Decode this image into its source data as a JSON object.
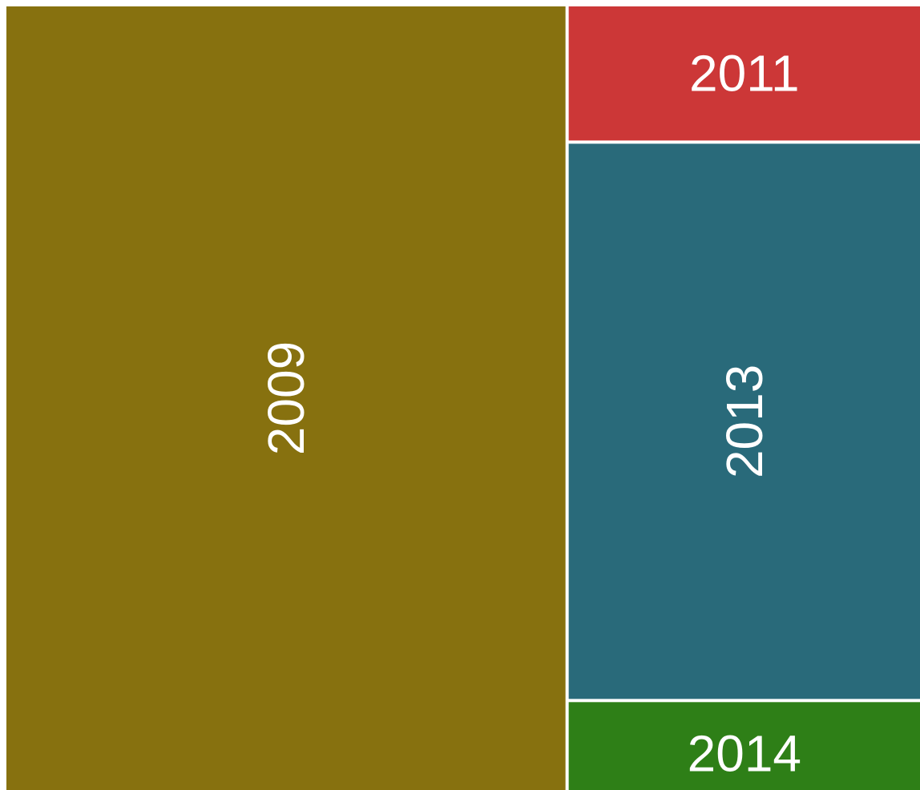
{
  "chart_data": {
    "type": "treemap",
    "categories": [
      "2009",
      "2011",
      "2013",
      "2014"
    ],
    "values": [
      680,
      75,
      305,
      48
    ],
    "colors": [
      "#87710f",
      "#cc3737",
      "#296a7a",
      "#2e7f17"
    ]
  }
}
